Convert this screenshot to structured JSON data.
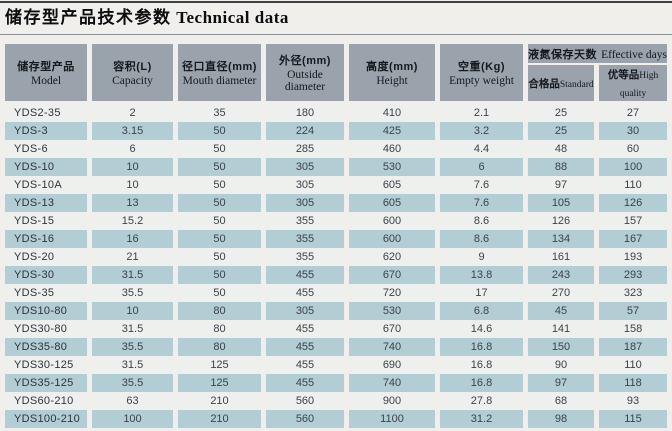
{
  "title": {
    "zh": "储存型产品技术参数",
    "en": "Technical data"
  },
  "colors": {
    "header_bg": "#9aa2ab",
    "row_alt": "#b2cdd3",
    "row_plain": "#eef0ee",
    "page_bg": "#f0efeb"
  },
  "table": {
    "columns": [
      {
        "zh": "储存型产品",
        "en": "Model"
      },
      {
        "zh": "容积(L)",
        "en": "Capacity"
      },
      {
        "zh": "径口直径(mm)",
        "en": "Mouth diameter"
      },
      {
        "zh": "外径(mm)",
        "en": "Outside diameter"
      },
      {
        "zh": "高度(mm)",
        "en": "Height"
      },
      {
        "zh": "空重(Kg)",
        "en": "Empty weight"
      }
    ],
    "merged_header": {
      "zh": "液氮保存天数",
      "en": "Effective days"
    },
    "sub_columns": [
      {
        "zh": "合格品",
        "en": "Standard"
      },
      {
        "zh": "优等品",
        "en": "High quality"
      }
    ],
    "rows": [
      [
        "YDS2-35",
        "2",
        "35",
        "180",
        "410",
        "2.1",
        "25",
        "27"
      ],
      [
        "YDS-3",
        "3.15",
        "50",
        "224",
        "425",
        "3.2",
        "25",
        "30"
      ],
      [
        "YDS-6",
        "6",
        "50",
        "285",
        "460",
        "4.4",
        "48",
        "60"
      ],
      [
        "YDS-10",
        "10",
        "50",
        "305",
        "530",
        "6",
        "88",
        "100"
      ],
      [
        "YDS-10A",
        "10",
        "50",
        "305",
        "605",
        "7.6",
        "97",
        "110"
      ],
      [
        "YDS-13",
        "13",
        "50",
        "305",
        "605",
        "7.6",
        "105",
        "126"
      ],
      [
        "YDS-15",
        "15.2",
        "50",
        "355",
        "600",
        "8.6",
        "126",
        "157"
      ],
      [
        "YDS-16",
        "16",
        "50",
        "355",
        "600",
        "8.6",
        "134",
        "167"
      ],
      [
        "YDS-20",
        "21",
        "50",
        "355",
        "620",
        "9",
        "161",
        "193"
      ],
      [
        "YDS-30",
        "31.5",
        "50",
        "455",
        "670",
        "13.8",
        "243",
        "293"
      ],
      [
        "YDS-35",
        "35.5",
        "50",
        "455",
        "720",
        "17",
        "270",
        "323"
      ],
      [
        "YDS10-80",
        "10",
        "80",
        "305",
        "530",
        "6.8",
        "45",
        "57"
      ],
      [
        "YDS30-80",
        "31.5",
        "80",
        "455",
        "670",
        "14.6",
        "141",
        "158"
      ],
      [
        "YDS35-80",
        "35.5",
        "80",
        "455",
        "740",
        "16.8",
        "150",
        "187"
      ],
      [
        "YDS30-125",
        "31.5",
        "125",
        "455",
        "690",
        "16.8",
        "90",
        "110"
      ],
      [
        "YDS35-125",
        "35.5",
        "125",
        "455",
        "740",
        "16.8",
        "97",
        "118"
      ],
      [
        "YDS60-210",
        "63",
        "210",
        "560",
        "900",
        "27.8",
        "68",
        "93"
      ],
      [
        "YDS100-210",
        "100",
        "210",
        "560",
        "1100",
        "31.2",
        "98",
        "115"
      ]
    ]
  }
}
